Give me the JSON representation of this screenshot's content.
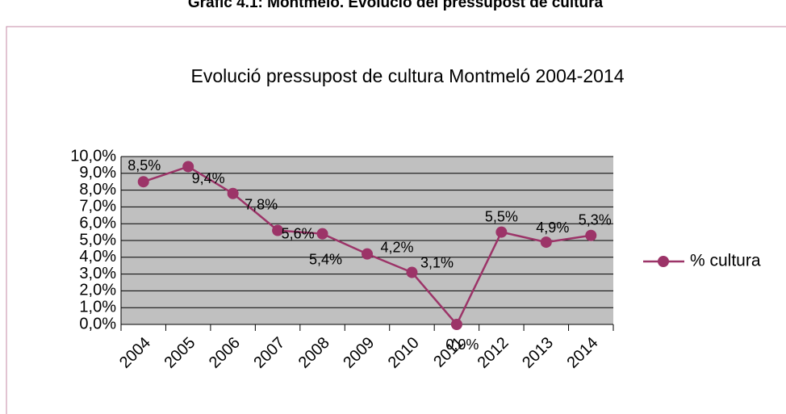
{
  "header": "Gràfic 4.1: Montmeló. Evolució del pressupost de cultura",
  "chart_data": {
    "type": "line",
    "title": "Evolució pressupost de cultura Montmeló 2004-2014",
    "categories": [
      "2004",
      "2005",
      "2006",
      "2007",
      "2008",
      "2009",
      "2010",
      "2011",
      "2012",
      "2013",
      "2014"
    ],
    "series": [
      {
        "name": "% cultura",
        "color": "#9c3468",
        "values": [
          8.5,
          9.4,
          7.8,
          5.6,
          5.4,
          4.2,
          3.1,
          0,
          5.5,
          4.9,
          5.3
        ],
        "value_labels": [
          "8,5%",
          "9,4%",
          "7,8%",
          "5,6%",
          "5,4%",
          "4,2%",
          "3,1%",
          "0,0%",
          "5,5%",
          "4,9%",
          "5,3%"
        ]
      }
    ],
    "ylim": [
      0,
      10
    ],
    "yticks": [
      {
        "value": 0,
        "label": "0,0%"
      },
      {
        "value": 1,
        "label": "1,0%"
      },
      {
        "value": 2,
        "label": "2,0%"
      },
      {
        "value": 3,
        "label": "3,0%"
      },
      {
        "value": 4,
        "label": "4,0%"
      },
      {
        "value": 5,
        "label": "5,0%"
      },
      {
        "value": 6,
        "label": "6,0%"
      },
      {
        "value": 7,
        "label": "7,0%"
      },
      {
        "value": 8,
        "label": "8,0%"
      },
      {
        "value": 9,
        "label": "9,0%"
      },
      {
        "value": 10,
        "label": "10,0%"
      }
    ],
    "grid": true,
    "legend": "right",
    "plot_background": "#c0c0c0"
  }
}
